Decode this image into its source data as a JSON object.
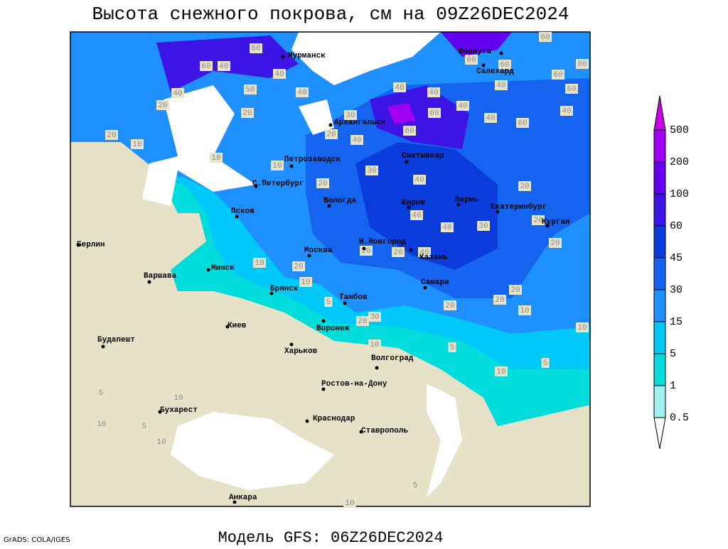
{
  "header": {
    "title": "Высота снежного покрова, см на 09Z26DEC2024"
  },
  "footer": {
    "model": "Модель GFS: 06Z26DEC2024",
    "credit": "GrADS: COLA/IGES"
  },
  "cities": [
    "Мурманск",
    "Архангельск",
    "Петрозаводск",
    "С.Петербург",
    "Сыктывкар",
    "Воркута",
    "Салехард",
    "Вологда",
    "Киров",
    "Пермь",
    "Екатеринбург",
    "Курган",
    "Псков",
    "Берлин",
    "Варшава",
    "Минск",
    "Москва",
    "Н.Новгород",
    "Казань",
    "Брянск",
    "Тамбов",
    "Самара",
    "Киев",
    "Воронеж",
    "Харьков",
    "Волгоград",
    "Будапешт",
    "Бухарест",
    "Ростов-на-Дону",
    "Краснодар",
    "Ставрополь",
    "Анкара"
  ],
  "contour_labels": [
    60,
    40,
    60,
    40,
    40,
    50,
    20,
    40,
    20,
    20,
    10,
    10,
    10,
    30,
    20,
    40,
    60,
    60,
    40,
    40,
    60,
    40,
    60,
    60,
    40,
    40,
    40,
    60,
    60,
    80,
    60,
    30,
    20,
    40,
    20,
    20,
    40,
    40,
    30,
    20,
    20,
    20,
    40,
    10,
    20,
    10,
    5,
    20,
    30,
    10,
    20,
    20,
    20,
    10,
    10,
    5,
    5,
    10,
    5,
    10,
    10,
    5,
    10,
    5,
    10
  ],
  "legend": {
    "levels": [
      0.5,
      1,
      5,
      15,
      30,
      45,
      60,
      100,
      200,
      500
    ],
    "colors": [
      "#ffffff",
      "#a0f0f0",
      "#00dcdc",
      "#00c8f8",
      "#1e90ff",
      "#1464f0",
      "#0a3cdc",
      "#3c14e6",
      "#6400f0",
      "#a000f0",
      "#c800e6"
    ]
  }
}
